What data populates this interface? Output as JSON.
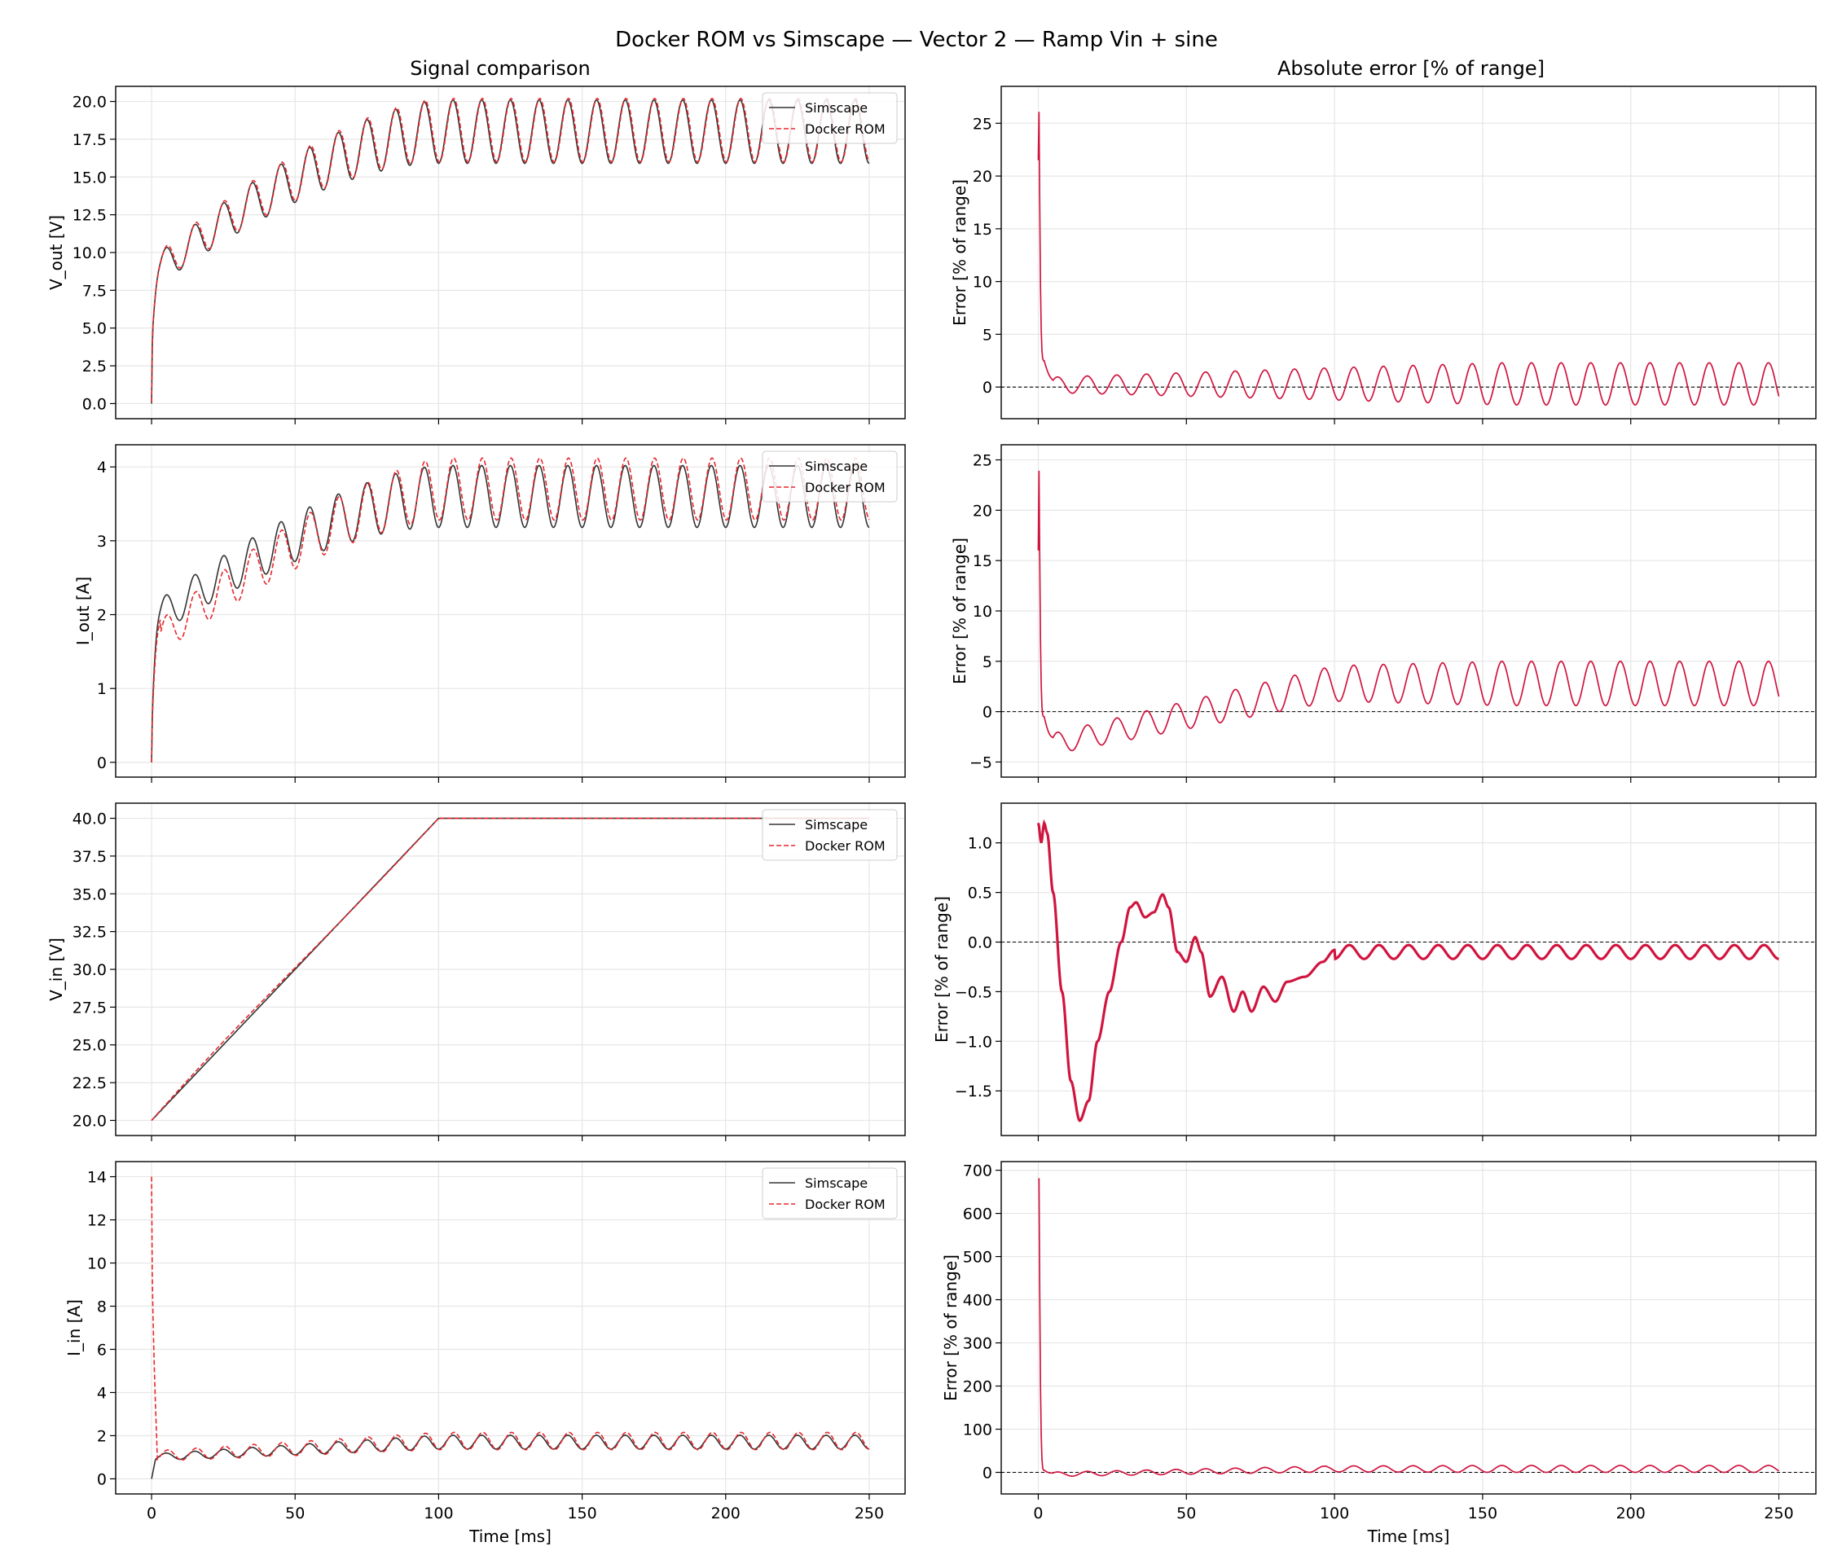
{
  "title": "Docker ROM vs Simscape — Vector 2 — Ramp Vin + sine",
  "columns": {
    "left_title": "Signal comparison",
    "right_title": "Absolute error [% of range]"
  },
  "legend": {
    "simscape": "Simscape",
    "rom": "Docker ROM"
  },
  "colors": {
    "simscape": "#333333",
    "rom": "#e8272d",
    "error": "#d0153f",
    "grid": "#e6e6e6",
    "zero_line": "#000000"
  },
  "chart_data": [
    {
      "type": "line",
      "row": 0,
      "side": "left",
      "xlabel": "",
      "ylabel": "V_out [V]",
      "xlim": [
        -12.5,
        262.5
      ],
      "ylim": [
        -1.0,
        21.0
      ],
      "xticks": [
        0,
        50,
        100,
        150,
        200,
        250
      ],
      "show_xtick_labels": false,
      "yticks": [
        0.0,
        2.5,
        5.0,
        7.5,
        10.0,
        12.5,
        15.0,
        17.5,
        20.0
      ],
      "ytick_labels": [
        "0.0",
        "2.5",
        "5.0",
        "7.5",
        "10.0",
        "12.5",
        "15.0",
        "17.5",
        "20.0"
      ],
      "legend_position": "top-right",
      "signal": {
        "start": 0.0,
        "initial_jump": 4.5,
        "base_start": 8.5,
        "base_end": 18.0,
        "ramp_end_ms": 100,
        "amp_start": 1.0,
        "amp_end": 2.1,
        "period_ms": 10.0,
        "rom_offset": 0.1,
        "rom_phase_ms": 0.25
      },
      "series": [
        {
          "name": "Simscape",
          "style": "solid"
        },
        {
          "name": "Docker ROM",
          "style": "dashed"
        }
      ]
    },
    {
      "type": "line",
      "row": 0,
      "side": "right",
      "xlabel": "",
      "ylabel": "Error [% of range]",
      "xlim": [
        -12.5,
        262.5
      ],
      "ylim": [
        -3.0,
        28.5
      ],
      "xticks": [
        0,
        50,
        100,
        150,
        200,
        250
      ],
      "show_xtick_labels": false,
      "yticks": [
        0,
        5,
        10,
        15,
        20,
        25
      ],
      "ytick_labels": [
        "0",
        "5",
        "10",
        "15",
        "20",
        "25"
      ],
      "error": {
        "spike_peak": 27.0,
        "spike_low": 21.5,
        "decay_end": 2.5,
        "mean_start": 0.2,
        "mean_end": 0.3,
        "amp_start": 0.7,
        "amp_end": 2.0,
        "period_ms": 10.0
      },
      "series": [
        {
          "name": "",
          "style": "solid"
        }
      ]
    },
    {
      "type": "line",
      "row": 1,
      "side": "left",
      "xlabel": "",
      "ylabel": "I_out [A]",
      "xlim": [
        -12.5,
        262.5
      ],
      "ylim": [
        -0.2,
        4.3
      ],
      "xticks": [
        0,
        50,
        100,
        150,
        200,
        250
      ],
      "show_xtick_labels": false,
      "yticks": [
        0,
        1,
        2,
        3,
        4
      ],
      "ytick_labels": [
        "0",
        "1",
        "2",
        "3",
        "4"
      ],
      "legend_position": "top-right",
      "signal": {
        "start": 0.0,
        "initial_jump": 0.7,
        "base_start": 1.9,
        "base_end": 3.6,
        "ramp_end_ms": 100,
        "amp_start": 0.22,
        "amp_end": 0.42,
        "period_ms": 10.0,
        "rom_offset_start": -0.3,
        "rom_offset_end": 0.1,
        "rom_phase_ms": 0.25
      },
      "series": [
        {
          "name": "Simscape",
          "style": "solid"
        },
        {
          "name": "Docker ROM",
          "style": "dashed"
        }
      ]
    },
    {
      "type": "line",
      "row": 1,
      "side": "right",
      "xlabel": "",
      "ylabel": "Error [% of range]",
      "xlim": [
        -12.5,
        262.5
      ],
      "ylim": [
        -6.5,
        26.5
      ],
      "xticks": [
        0,
        50,
        100,
        150,
        200,
        250
      ],
      "show_xtick_labels": false,
      "yticks": [
        -5,
        0,
        5,
        10,
        15,
        20,
        25
      ],
      "ytick_labels": [
        "−5",
        "0",
        "5",
        "10",
        "15",
        "20",
        "25"
      ],
      "error": {
        "spike_peak": 25.5,
        "spike_low": 16.0,
        "decay_end": -0.5,
        "mean_start": -3.5,
        "mean_end": 2.8,
        "amp_start": 1.0,
        "amp_end": 2.2,
        "period_ms": 10.0
      },
      "series": [
        {
          "name": "",
          "style": "solid"
        }
      ]
    },
    {
      "type": "line",
      "row": 2,
      "side": "left",
      "xlabel": "",
      "ylabel": "V_in [V]",
      "xlim": [
        -12.5,
        262.5
      ],
      "ylim": [
        19.0,
        41.0
      ],
      "xticks": [
        0,
        50,
        100,
        150,
        200,
        250
      ],
      "show_xtick_labels": false,
      "yticks": [
        20.0,
        22.5,
        25.0,
        27.5,
        30.0,
        32.5,
        35.0,
        37.5,
        40.0
      ],
      "ytick_labels": [
        "20.0",
        "22.5",
        "25.0",
        "27.5",
        "30.0",
        "32.5",
        "35.0",
        "37.5",
        "40.0"
      ],
      "legend_position": "top-right",
      "signal": {
        "start_value": 20.0,
        "end_value": 40.0,
        "ramp_end_ms": 100,
        "rom_start_offset": 0.3
      },
      "series": [
        {
          "name": "Simscape",
          "style": "solid"
        },
        {
          "name": "Docker ROM",
          "style": "dashed"
        }
      ]
    },
    {
      "type": "line",
      "row": 2,
      "side": "right",
      "xlabel": "",
      "ylabel": "Error [% of range]",
      "xlim": [
        -12.5,
        262.5
      ],
      "ylim": [
        -1.95,
        1.4
      ],
      "xticks": [
        0,
        50,
        100,
        150,
        200,
        250
      ],
      "show_xtick_labels": false,
      "yticks": [
        -1.5,
        -1.0,
        -0.5,
        0.0,
        0.5,
        1.0
      ],
      "ytick_labels": [
        "−1.5",
        "−1.0",
        "−0.5",
        "0.0",
        "0.5",
        "1.0"
      ],
      "error": {
        "knots": [
          [
            0,
            1.2
          ],
          [
            1,
            1.0
          ],
          [
            2,
            1.2
          ],
          [
            3,
            1.1
          ],
          [
            5,
            0.5
          ],
          [
            8,
            -0.5
          ],
          [
            11,
            -1.4
          ],
          [
            14,
            -1.8
          ],
          [
            17,
            -1.6
          ],
          [
            20,
            -1.0
          ],
          [
            24,
            -0.5
          ],
          [
            28,
            0.0
          ],
          [
            31,
            0.35
          ],
          [
            33,
            0.4
          ],
          [
            36,
            0.25
          ],
          [
            39,
            0.3
          ],
          [
            42,
            0.48
          ],
          [
            44,
            0.35
          ],
          [
            47,
            -0.1
          ],
          [
            50,
            -0.2
          ],
          [
            53,
            0.05
          ],
          [
            55,
            -0.1
          ],
          [
            58,
            -0.55
          ],
          [
            62,
            -0.35
          ],
          [
            66,
            -0.7
          ],
          [
            69,
            -0.5
          ],
          [
            72,
            -0.7
          ],
          [
            76,
            -0.45
          ],
          [
            80,
            -0.6
          ],
          [
            84,
            -0.4
          ],
          [
            90,
            -0.35
          ],
          [
            96,
            -0.2
          ],
          [
            100,
            -0.08
          ]
        ],
        "tail_mean": -0.1,
        "tail_amp": 0.07,
        "period_ms": 10.0
      },
      "series": [
        {
          "name": "",
          "style": "solid"
        }
      ]
    },
    {
      "type": "line",
      "row": 3,
      "side": "left",
      "xlabel": "Time [ms]",
      "ylabel": "I_in [A]",
      "xlim": [
        -12.5,
        262.5
      ],
      "ylim": [
        -0.7,
        14.7
      ],
      "xticks": [
        0,
        50,
        100,
        150,
        200,
        250
      ],
      "show_xtick_labels": true,
      "xtick_labels": [
        "0",
        "50",
        "100",
        "150",
        "200",
        "250"
      ],
      "yticks": [
        0,
        2,
        4,
        6,
        8,
        10,
        12,
        14
      ],
      "ytick_labels": [
        "0",
        "2",
        "4",
        "6",
        "8",
        "10",
        "12",
        "14"
      ],
      "legend_position": "top-right",
      "signal": {
        "start": 0.0,
        "rom_spike": 14.0,
        "base_start": 1.0,
        "base_end": 1.7,
        "ramp_end_ms": 100,
        "amp_start": 0.15,
        "amp_end": 0.32,
        "period_ms": 10.0,
        "rom_offset": 0.12
      },
      "series": [
        {
          "name": "Simscape",
          "style": "solid"
        },
        {
          "name": "Docker ROM",
          "style": "dashed"
        }
      ]
    },
    {
      "type": "line",
      "row": 3,
      "side": "right",
      "xlabel": "Time [ms]",
      "ylabel": "Error [% of range]",
      "xlim": [
        -12.5,
        262.5
      ],
      "ylim": [
        -50,
        720
      ],
      "xticks": [
        0,
        50,
        100,
        150,
        200,
        250
      ],
      "show_xtick_labels": true,
      "xtick_labels": [
        "0",
        "50",
        "100",
        "150",
        "200",
        "250"
      ],
      "yticks": [
        0,
        100,
        200,
        300,
        400,
        500,
        600,
        700
      ],
      "ytick_labels": [
        "0",
        "100",
        "200",
        "300",
        "400",
        "500",
        "600",
        "700"
      ],
      "error": {
        "spike_peak": 680,
        "decay_end": 5,
        "mean_start": -5,
        "mean_end": 8,
        "amp_start": 5,
        "amp_end": 8,
        "period_ms": 10.0
      },
      "series": [
        {
          "name": "",
          "style": "solid"
        }
      ]
    }
  ]
}
